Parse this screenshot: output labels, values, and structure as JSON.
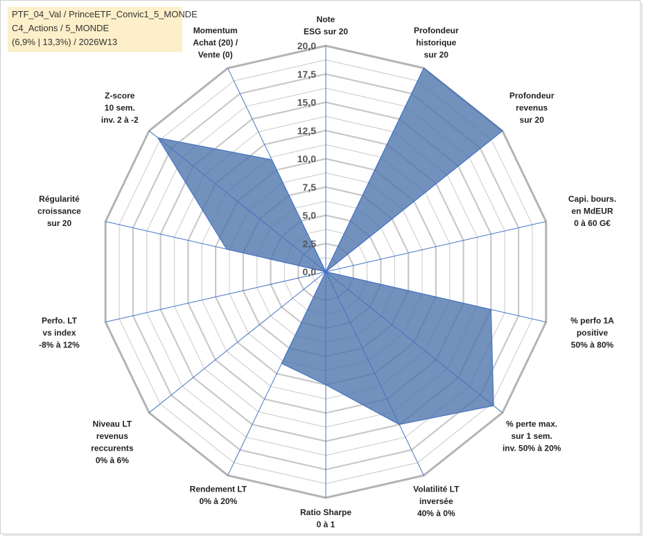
{
  "title_lines": [
    "PTF_04_Val / PrinceETF_Convic1_5_MONDE",
    "C4_Actions / 5_MONDE",
    "(6,9% | 13,3%) / 2026W13"
  ],
  "chart_data": {
    "type": "radar",
    "rmax": 20,
    "ticks": [
      "0,0",
      "2,5",
      "5,0",
      "7,5",
      "10,0",
      "12,5",
      "15,0",
      "17,5",
      "20,0"
    ],
    "gridlines": true,
    "axes": [
      {
        "label": [
          "Note",
          "ESG sur 20"
        ],
        "value": 0
      },
      {
        "label": [
          "Profondeur",
          "historique",
          "sur 20"
        ],
        "value": 20
      },
      {
        "label": [
          "Profondeur",
          "revenus",
          "sur 20"
        ],
        "value": 20
      },
      {
        "label": [
          "Capi. bours.",
          "en MdEUR",
          "0 à 60 G€"
        ],
        "value": 0
      },
      {
        "label": [
          "% perfo 1A",
          "positive",
          "50% à 80%"
        ],
        "value": 15
      },
      {
        "label": [
          "% perte max.",
          "sur 1 sem.",
          "inv. 50% à 20%"
        ],
        "value": 19
      },
      {
        "label": [
          "Volatilité LT",
          "inversée",
          "40% à 0%"
        ],
        "value": 15
      },
      {
        "label": [
          "Ratio Sharpe",
          "0 à 1"
        ],
        "value": 10
      },
      {
        "label": [
          "Rendement LT",
          "0% à 20%"
        ],
        "value": 9
      },
      {
        "label": [
          "Niveau LT",
          "revenus",
          "reccurents",
          "0% à 6%"
        ],
        "value": 0
      },
      {
        "label": [
          "Perfo. LT",
          "vs index",
          "-8% à 12%"
        ],
        "value": 0
      },
      {
        "label": [
          "Régularité",
          "croissance",
          "sur 20"
        ],
        "value": 9
      },
      {
        "label": [
          "Z-score",
          "10 sem.",
          "inv. 2 à -2"
        ],
        "value": 19
      },
      {
        "label": [
          "Momentum",
          "Achat (20) /",
          "Vente (0)"
        ],
        "value": 11
      }
    ],
    "colors": {
      "fill": "#4a73aa",
      "stroke": "#4472c4",
      "grid": "#c8c8c8",
      "outer": "#b3b3b3"
    }
  }
}
